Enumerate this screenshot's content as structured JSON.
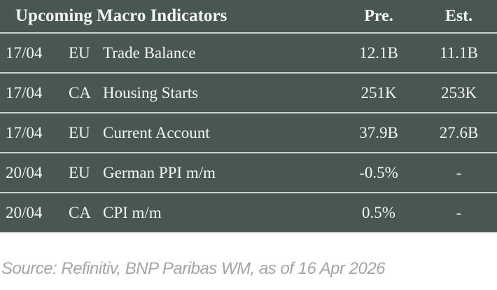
{
  "table": {
    "title": "Upcoming Macro Indicators",
    "columns": {
      "pre": "Pre.",
      "est": "Est."
    },
    "rows": [
      {
        "date": "17/04",
        "region": "EU",
        "indicator": "Trade Balance",
        "pre": "12.1B",
        "est": "11.1B"
      },
      {
        "date": "17/04",
        "region": "CA",
        "indicator": "Housing Starts",
        "pre": "251K",
        "est": "253K"
      },
      {
        "date": "17/04",
        "region": "EU",
        "indicator": "Current Account",
        "pre": "37.9B",
        "est": "27.6B"
      },
      {
        "date": "20/04",
        "region": "EU",
        "indicator": "German PPI m/m",
        "pre": "-0.5%",
        "est": "-"
      },
      {
        "date": "20/04",
        "region": "CA",
        "indicator": "CPI m/m",
        "pre": "0.5%",
        "est": "-"
      }
    ]
  },
  "source_note": "Source: Refinitiv, BNP Paribas WM, as of 16 Apr 2026",
  "colors": {
    "table_background": "#485751",
    "divider": "#c8d2ca",
    "table_text": "#f4f5f1",
    "source_text": "#a3a5a4",
    "page_background": "#ffffff"
  }
}
